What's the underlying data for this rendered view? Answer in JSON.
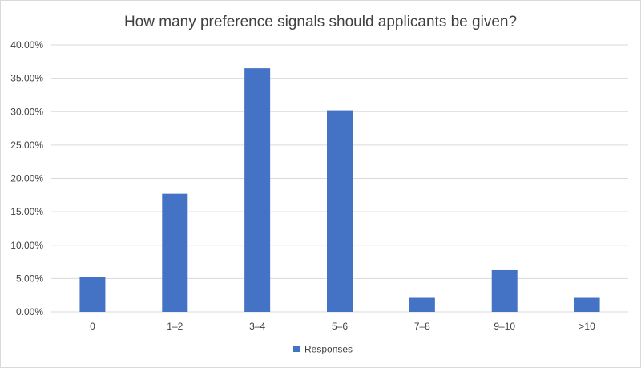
{
  "chart_data": {
    "type": "bar",
    "title": "How many preference signals should applicants be given?",
    "xlabel": "",
    "ylabel": "",
    "categories": [
      "0",
      "1–2",
      "3–4",
      "5–6",
      "7–8",
      "9–10",
      ">10"
    ],
    "series": [
      {
        "name": "Responses",
        "values": [
          5.2,
          17.7,
          36.5,
          30.2,
          2.1,
          6.25,
          2.1
        ],
        "color": "#4472c4"
      }
    ],
    "ylim": [
      0,
      40
    ],
    "yticks": [
      "0.00%",
      "5.00%",
      "10.00%",
      "15.00%",
      "20.00%",
      "25.00%",
      "30.00%",
      "35.00%",
      "40.00%"
    ],
    "grid": true,
    "legend_position": "bottom",
    "colors": {
      "gridline": "#d9d9d9",
      "text": "#404040"
    }
  }
}
